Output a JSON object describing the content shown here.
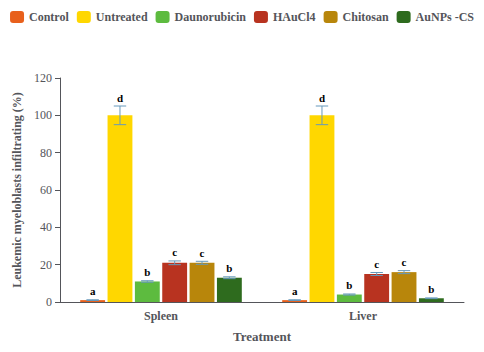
{
  "chart_data": {
    "type": "bar",
    "categories": [
      "Spleen",
      "Liver"
    ],
    "xlabel": "Treatment",
    "ylabel": "Leukemic myeloblasts infiltrating (%)",
    "ylim": [
      0,
      120
    ],
    "yticks": [
      0,
      20,
      40,
      60,
      80,
      100,
      120
    ],
    "grid": false,
    "legend": "top",
    "series": [
      {
        "name": "Control",
        "color": "#E8601C",
        "values": [
          1.0,
          1.0
        ],
        "errors": [
          0.2,
          0.2
        ],
        "annotations": [
          "a",
          "a"
        ]
      },
      {
        "name": "Untreated",
        "color": "#FFD700",
        "values": [
          100.0,
          100.0
        ],
        "errors": [
          5.0,
          5.0
        ],
        "annotations": [
          "d",
          "d"
        ]
      },
      {
        "name": "Daunorubicin",
        "color": "#5DBB3F",
        "values": [
          11.0,
          4.0
        ],
        "errors": [
          0.4,
          0.3
        ],
        "annotations": [
          "b",
          "b"
        ]
      },
      {
        "name": "HAuCl4",
        "color": "#B83320",
        "values": [
          21.0,
          15.0
        ],
        "errors": [
          1.0,
          0.8
        ],
        "annotations": [
          "c",
          "c"
        ]
      },
      {
        "name": "Chitosan",
        "color": "#B8860B",
        "values": [
          21.0,
          16.0
        ],
        "errors": [
          0.8,
          0.8
        ],
        "annotations": [
          "c",
          "c"
        ]
      },
      {
        "name": "AuNPs -CS",
        "color": "#2E6B1E",
        "values": [
          13.0,
          2.0
        ],
        "errors": [
          0.5,
          0.2
        ],
        "annotations": [
          "b",
          "b"
        ]
      }
    ]
  }
}
